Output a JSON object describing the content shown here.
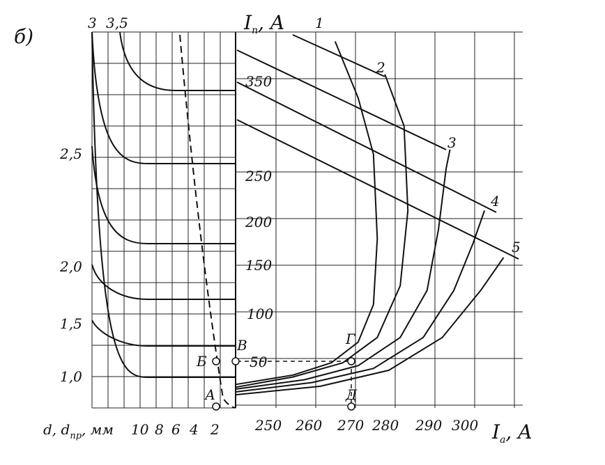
{
  "figure_label": "б)",
  "left_panel": {
    "x_axis_label": "d, d",
    "x_axis_label_sub": "пр",
    "x_axis_unit": ", мм",
    "x_ticks": [
      "10",
      "8",
      "6",
      "4",
      "2"
    ],
    "y_ticks": [
      "1,0",
      "1,5",
      "2,0",
      "2,5"
    ],
    "top_labels": [
      "3",
      "3,5"
    ],
    "point_labels": [
      "Б",
      "В",
      "А"
    ]
  },
  "right_panel": {
    "y_axis_label": "I",
    "y_axis_label_sub": "п",
    "y_axis_unit": ", A",
    "x_axis_label": "I",
    "x_axis_label_sub": "а",
    "x_axis_unit": ", A",
    "y_ticks": [
      "50",
      "100",
      "150",
      "200",
      "250",
      "350"
    ],
    "x_ticks": [
      "250",
      "260",
      "270",
      "280",
      "290",
      "300"
    ],
    "curve_labels": [
      "1",
      "2",
      "3",
      "4",
      "5"
    ],
    "point_labels": [
      "Г",
      "Д"
    ]
  },
  "chart_data": {
    "type": "line",
    "title": "",
    "xlabel": "Iа, A",
    "ylabel": "Iп, A",
    "xlim": [
      240,
      315
    ],
    "ylim": [
      0,
      400
    ],
    "series": [
      {
        "name": "1",
        "x": [
          240,
          255,
          265,
          272,
          276,
          277,
          276,
          272,
          266
        ],
        "y": [
          25,
          35,
          48,
          70,
          110,
          180,
          270,
          330,
          390
        ]
      },
      {
        "name": "2",
        "x": [
          240,
          255,
          268,
          277,
          283,
          285,
          284,
          279
        ],
        "y": [
          22,
          33,
          48,
          75,
          130,
          210,
          300,
          355
        ]
      },
      {
        "name": "3",
        "x": [
          240,
          258,
          272,
          283,
          290,
          293,
          295,
          296
        ],
        "y": [
          20,
          30,
          45,
          75,
          125,
          190,
          255,
          275
        ]
      },
      {
        "name": "4",
        "x": [
          240,
          260,
          276,
          289,
          297,
          302,
          305
        ],
        "y": [
          17,
          27,
          42,
          75,
          125,
          175,
          210
        ]
      },
      {
        "name": "5",
        "x": [
          240,
          262,
          280,
          294,
          304,
          310
        ],
        "y": [
          14,
          23,
          40,
          75,
          125,
          160
        ]
      }
    ]
  }
}
